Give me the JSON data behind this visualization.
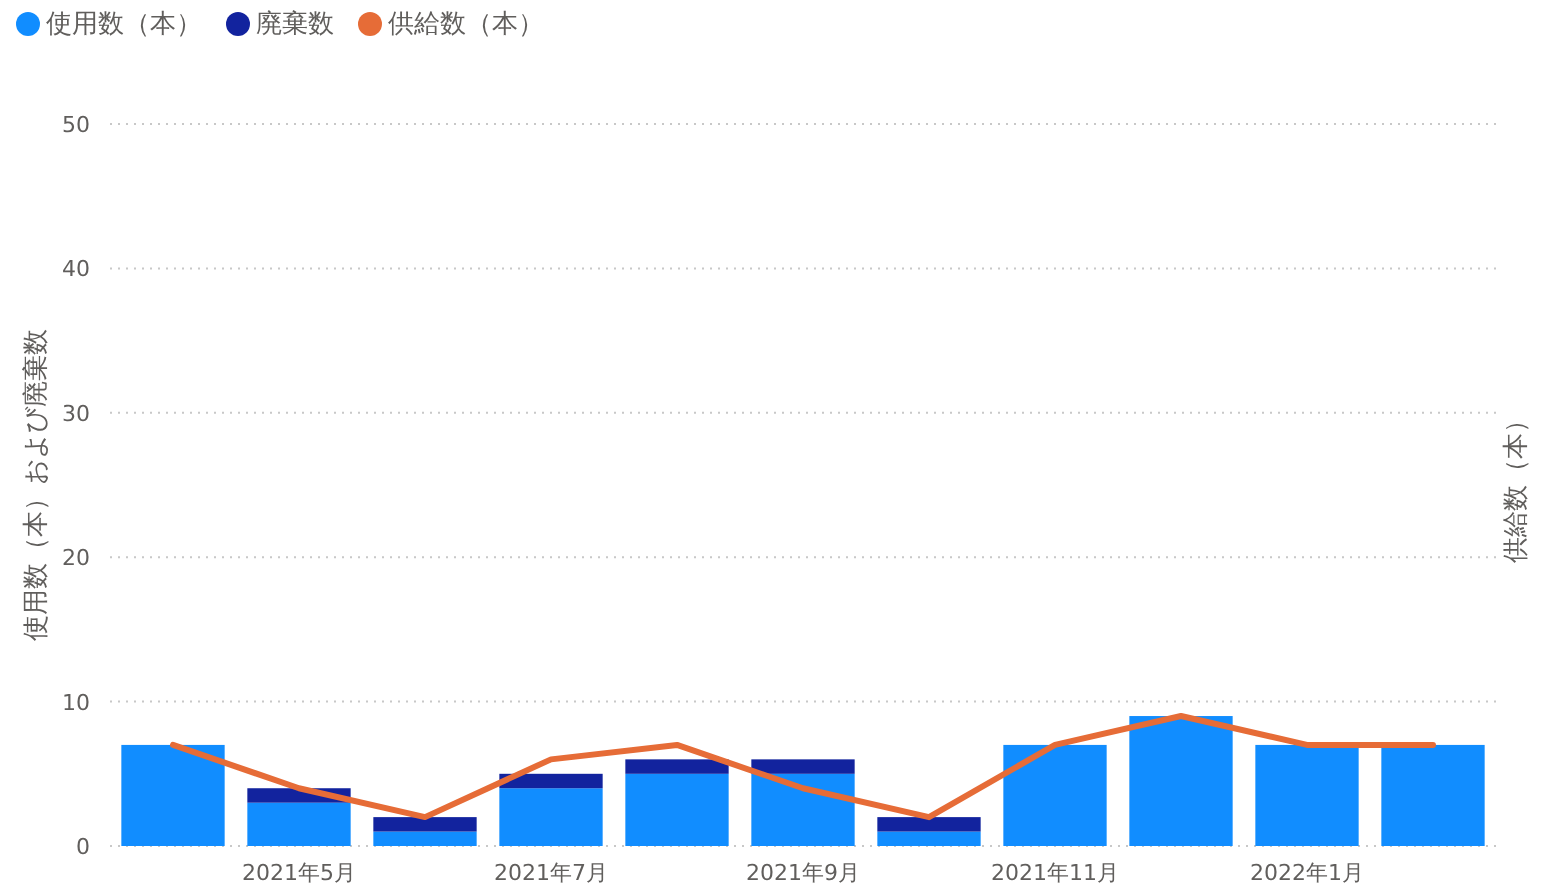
{
  "chart_data": {
    "type": "bar",
    "stacked": true,
    "ylabel": "使用数（本）および廃棄数",
    "y2label": "供給数（本）",
    "categories": [
      null,
      "2021年5月",
      null,
      "2021年7月",
      null,
      "2021年9月",
      null,
      "2021年11月",
      null,
      "2022年1月",
      null
    ],
    "series": [
      {
        "name": "使用数（本）",
        "color": "#118dff",
        "values": [
          7,
          3,
          1,
          4,
          5,
          5,
          1,
          7,
          9,
          7,
          7
        ]
      },
      {
        "name": "廃棄数",
        "color": "#12239e",
        "values": [
          0,
          1,
          1,
          1,
          1,
          1,
          1,
          0,
          0,
          0,
          0
        ]
      },
      {
        "name": "供給数（本）",
        "type": "line",
        "color": "#e66c37",
        "values": [
          7,
          4,
          2,
          6,
          7,
          4,
          2,
          7,
          9,
          7,
          7
        ]
      }
    ],
    "ylim": [
      0,
      50
    ],
    "yticks": [
      0,
      10,
      20,
      30,
      40,
      50
    ],
    "grid": "y",
    "legend": "top left"
  }
}
